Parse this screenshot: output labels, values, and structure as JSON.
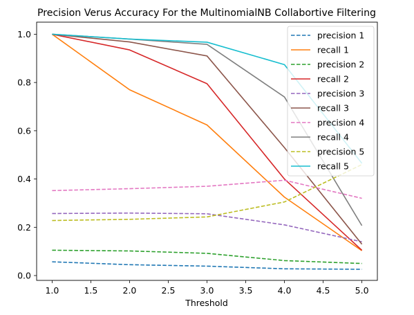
{
  "chart_data": {
    "type": "line",
    "title": "Precision Verus Accuracy For the  MultinomialNB Collabortive Filtering",
    "xlabel": "Threshold",
    "ylabel": "",
    "x": [
      1,
      2,
      3,
      4,
      5
    ],
    "xlim": [
      0.8,
      5.2
    ],
    "ylim": [
      -0.02,
      1.05
    ],
    "xticks": [
      1.0,
      1.5,
      2.0,
      2.5,
      3.0,
      3.5,
      4.0,
      4.5,
      5.0
    ],
    "xtick_labels": [
      "1.0",
      "1.5",
      "2.0",
      "2.5",
      "3.0",
      "3.5",
      "4.0",
      "4.5",
      "5.0"
    ],
    "yticks": [
      0.0,
      0.2,
      0.4,
      0.6,
      0.8,
      1.0
    ],
    "ytick_labels": [
      "0.0",
      "0.2",
      "0.4",
      "0.6",
      "0.8",
      "1.0"
    ],
    "grid": false,
    "legend_position": "top-right",
    "series": [
      {
        "name": "precision 1",
        "color": "#1f77b4",
        "dashed": true,
        "values": [
          0.057,
          0.045,
          0.039,
          0.028,
          0.026
        ]
      },
      {
        "name": "recall 1",
        "color": "#ff7f0e",
        "dashed": false,
        "values": [
          1.0,
          0.77,
          0.624,
          0.325,
          0.103
        ]
      },
      {
        "name": "precision 2",
        "color": "#2ca02c",
        "dashed": true,
        "values": [
          0.105,
          0.102,
          0.092,
          0.062,
          0.05
        ]
      },
      {
        "name": "recall 2",
        "color": "#d62728",
        "dashed": false,
        "values": [
          1.0,
          0.935,
          0.795,
          0.4,
          0.105
        ]
      },
      {
        "name": "precision 3",
        "color": "#9467bd",
        "dashed": true,
        "values": [
          0.257,
          0.259,
          0.256,
          0.21,
          0.14
        ]
      },
      {
        "name": "recall 3",
        "color": "#8c564b",
        "dashed": false,
        "values": [
          1.0,
          0.968,
          0.91,
          0.53,
          0.13
        ]
      },
      {
        "name": "precision 4",
        "color": "#e377c2",
        "dashed": true,
        "values": [
          0.352,
          0.36,
          0.37,
          0.395,
          0.32
        ]
      },
      {
        "name": "recall 4",
        "color": "#7f7f7f",
        "dashed": false,
        "values": [
          1.0,
          0.98,
          0.958,
          0.74,
          0.207
        ]
      },
      {
        "name": "precision 5",
        "color": "#bcbd22",
        "dashed": true,
        "values": [
          0.228,
          0.233,
          0.243,
          0.305,
          0.46
        ]
      },
      {
        "name": "recall 5",
        "color": "#17becf",
        "dashed": false,
        "values": [
          1.0,
          0.98,
          0.967,
          0.874,
          0.465
        ]
      }
    ]
  }
}
